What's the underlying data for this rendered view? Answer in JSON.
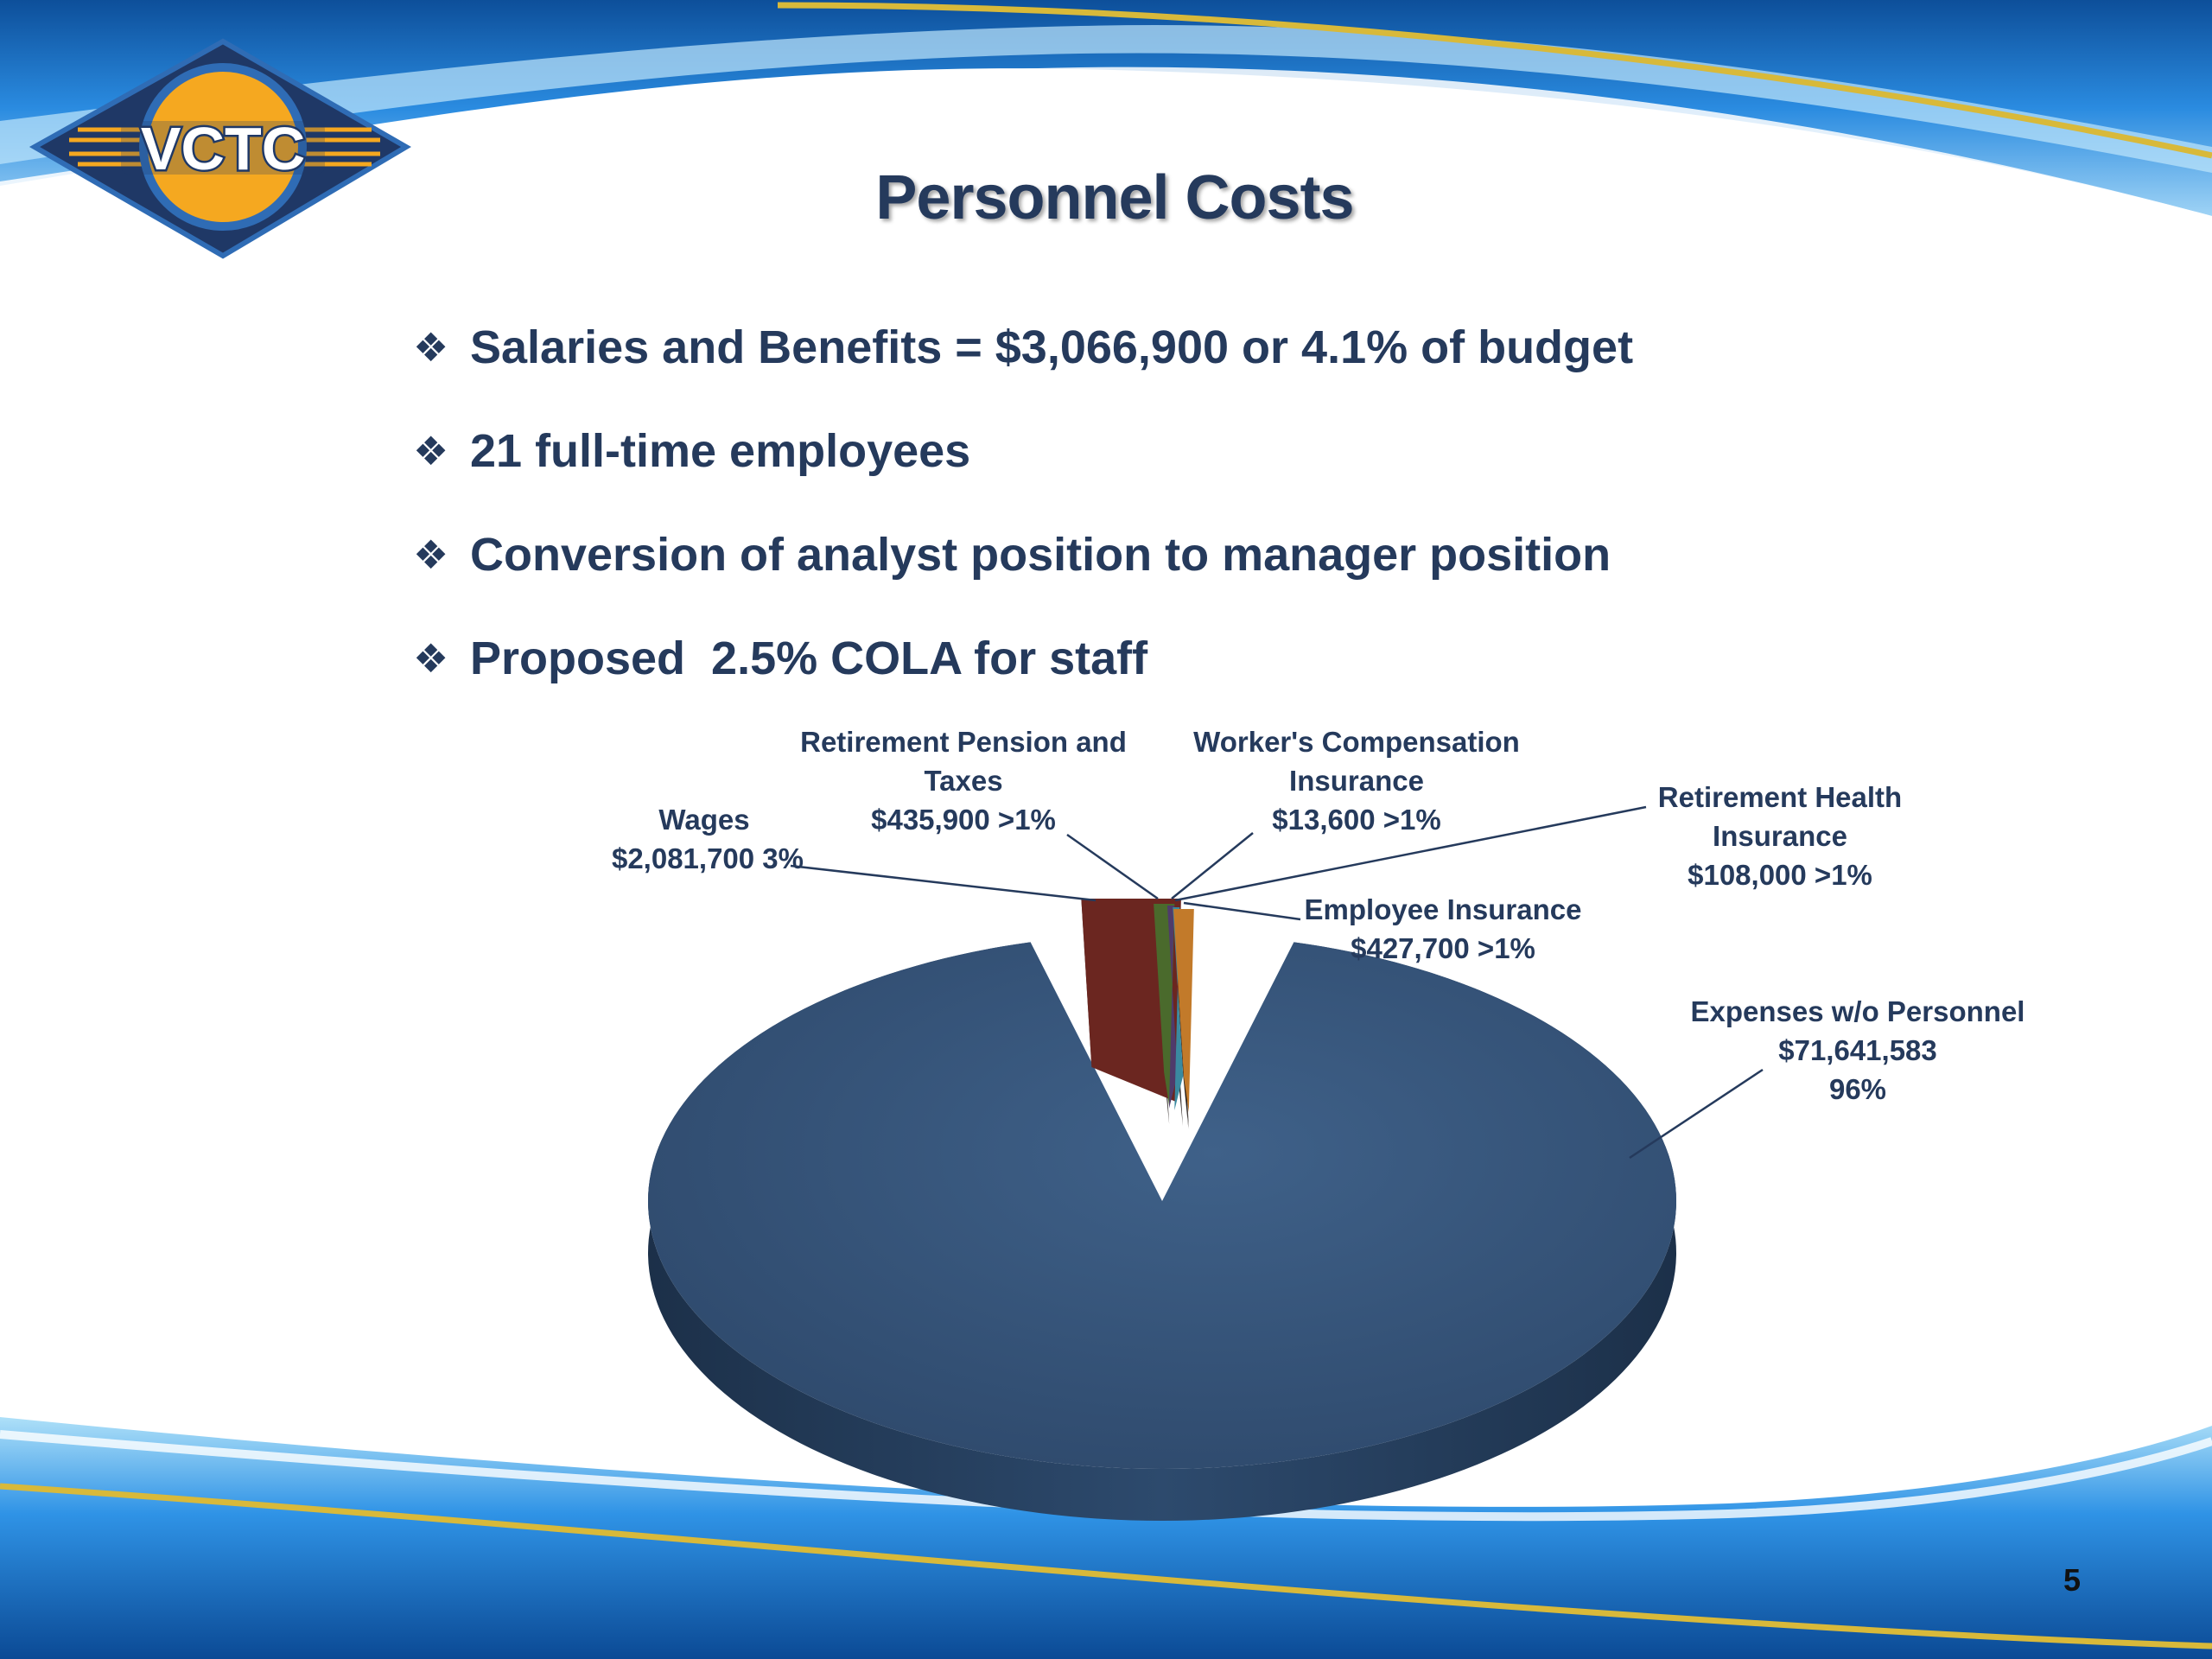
{
  "slide": {
    "title": "Personnel Costs",
    "page_number": "5",
    "logo_text": "VCTC",
    "bullet_icon": "diamond-bullet-icon",
    "bullets": [
      "Salaries and Benefits = $3,066,900 or 4.1% of budget",
      "21 full-time employees",
      "Conversion of analyst position to manager position",
      "Proposed  2.5% COLA for staff"
    ],
    "colors": {
      "title": "#253a5c",
      "wave_blue": "#1b73c3",
      "wave_gold": "#d8b93a",
      "logo_orange": "#f5a820",
      "logo_navy": "#1f3866"
    }
  },
  "chart_data": {
    "type": "pie",
    "title": "",
    "style": "3d-exploded",
    "slices": [
      {
        "name": "Expenses w/o Personnel",
        "label": [
          "Expenses w/o Personnel",
          "$71,641,583",
          "96%"
        ],
        "value": 71641583,
        "percent_label": "96%",
        "color": "#2e4a6e"
      },
      {
        "name": "Wages",
        "label": [
          "Wages",
          "$2,081,700  3%"
        ],
        "value": 2081700,
        "percent_label": "3%",
        "color": "#6b2620"
      },
      {
        "name": "Retirement Pension and Taxes",
        "label": [
          "Retirement Pension and",
          "Taxes",
          "$435,900  >1%"
        ],
        "value": 435900,
        "percent_label": ">1%",
        "color": "#4a6a2c"
      },
      {
        "name": "Worker's Compensation Insurance",
        "label": [
          "Worker's Compensation",
          "Insurance",
          "$13,600  >1%"
        ],
        "value": 13600,
        "percent_label": ">1%",
        "color": "#4f3b6b"
      },
      {
        "name": "Retirement Health Insurance",
        "label": [
          "Retirement Health",
          "Insurance",
          "$108,000  >1%"
        ],
        "value": 108000,
        "percent_label": ">1%",
        "color": "#3a8aa0"
      },
      {
        "name": "Employee Insurance",
        "label": [
          "Employee Insurance",
          "$427,700  >1%"
        ],
        "value": 427700,
        "percent_label": ">1%",
        "color": "#c27a2a"
      }
    ]
  }
}
